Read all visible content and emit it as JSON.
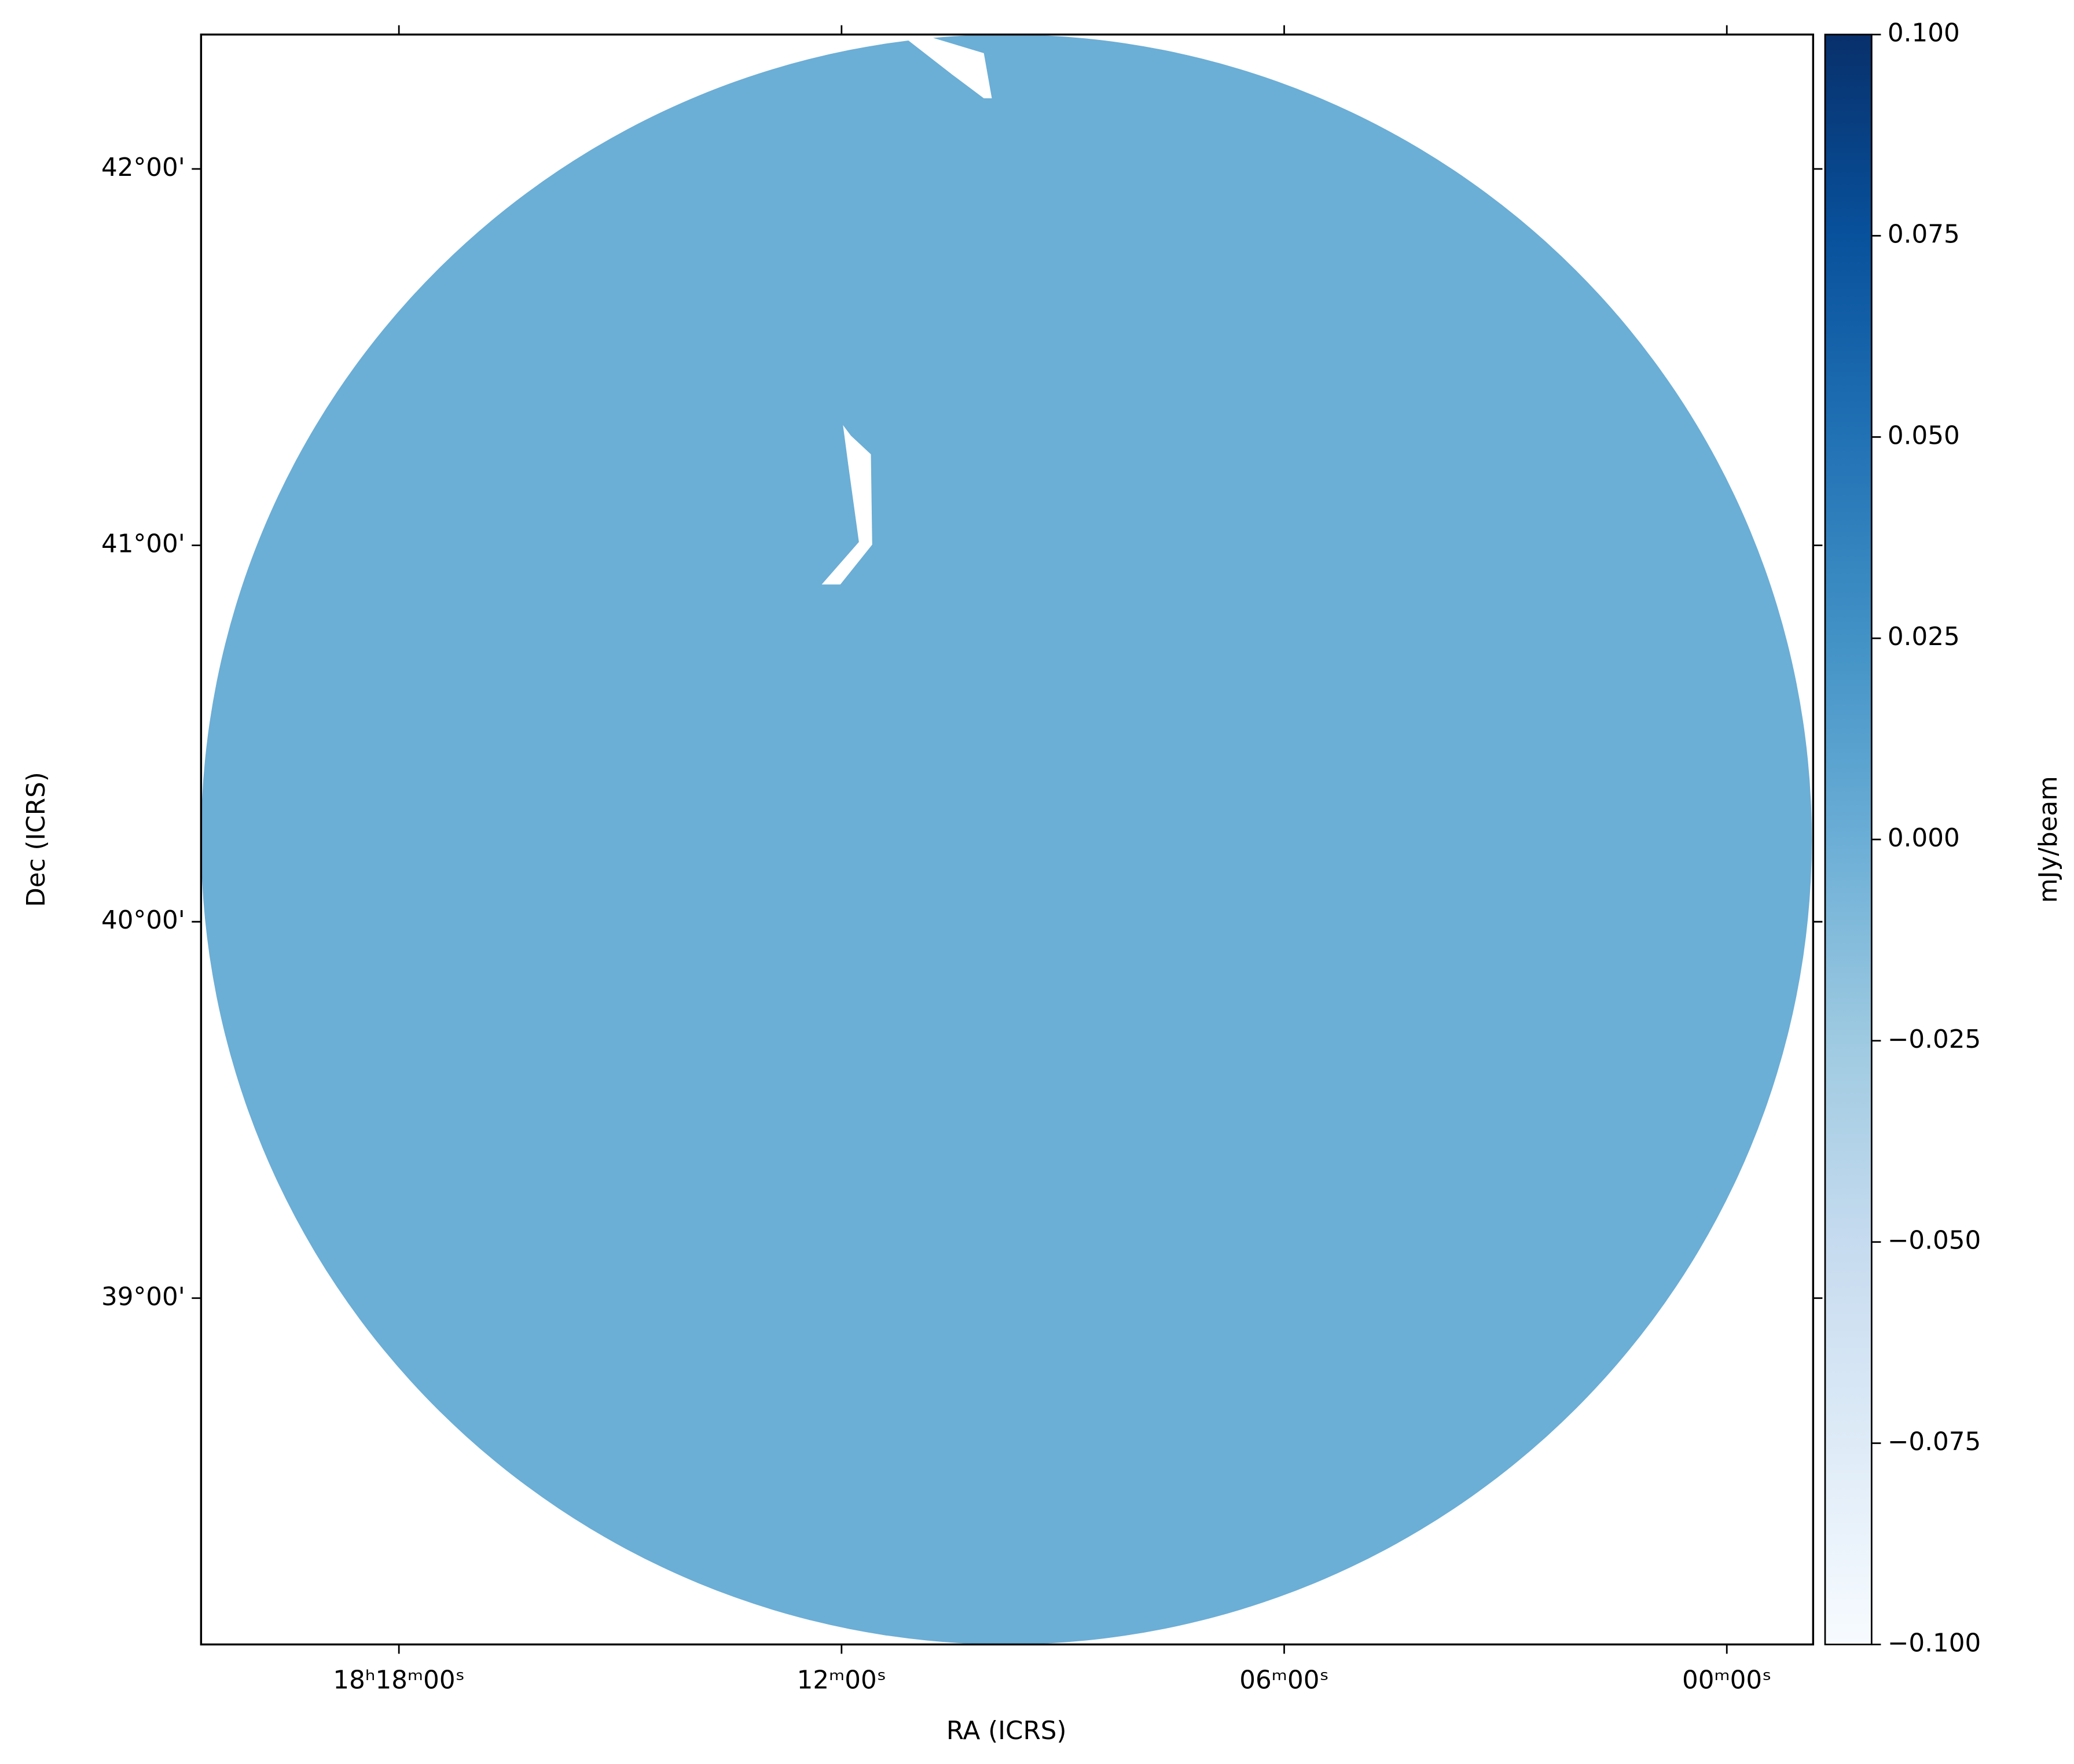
{
  "chart_data": {
    "type": "image",
    "x_label": "RA (ICRS)",
    "y_label": "Dec (ICRS)",
    "xlim": [
      18.3447,
      17.9805
    ],
    "xticks": [
      {
        "value": 18.3,
        "label": "18ʰ18ᵐ00ˢ"
      },
      {
        "value": 18.2,
        "label": "12ᵐ00ˢ"
      },
      {
        "value": 18.1,
        "label": "06ᵐ00ˢ"
      },
      {
        "value": 18.0,
        "label": "00ᵐ00ˢ"
      }
    ],
    "ylim": [
      38.08,
      42.357
    ],
    "yticks": [
      {
        "value": 39,
        "label": "39°00'"
      },
      {
        "value": 40,
        "label": "40°00'"
      },
      {
        "value": 41,
        "label": "41°00'"
      },
      {
        "value": 42,
        "label": "42°00'"
      }
    ],
    "image_color": "#6baed6",
    "colorbar": {
      "label": "mJy/beam",
      "lim": [
        -0.1,
        0.1
      ],
      "colormap": [
        "#f7fbff",
        "#deebf7",
        "#c6dbef",
        "#9ecae1",
        "#6baed6",
        "#4292c6",
        "#2171b5",
        "#08519c",
        "#08306b"
      ],
      "ticks": [
        {
          "value": -0.1,
          "label": "−0.100"
        },
        {
          "value": -0.075,
          "label": "−0.075"
        },
        {
          "value": -0.05,
          "label": "−0.050"
        },
        {
          "value": -0.025,
          "label": "−0.025"
        },
        {
          "value": 0,
          "label": "0.000"
        },
        {
          "value": 0.025,
          "label": "0.025"
        },
        {
          "value": 0.05,
          "label": "0.050"
        },
        {
          "value": 0.075,
          "label": "0.075"
        },
        {
          "value": 0.1,
          "label": "0.100"
        }
      ]
    }
  }
}
